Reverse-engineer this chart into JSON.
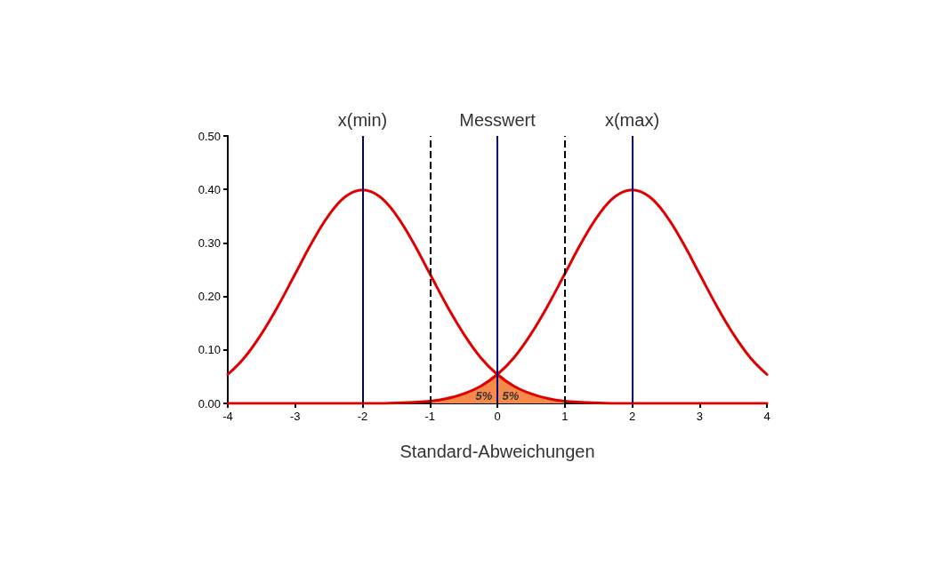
{
  "chart_data": {
    "type": "line",
    "xlabel": "Standard-Abweichungen",
    "x": [
      -4,
      -3.75,
      -3.5,
      -3.25,
      -3,
      -2.75,
      -2.5,
      -2.25,
      -2,
      -1.75,
      -1.5,
      -1.25,
      -1,
      -0.75,
      -0.5,
      -0.25,
      0,
      0.25,
      0.5,
      0.75,
      1,
      1.25,
      1.5,
      1.75,
      2,
      2.25,
      2.5,
      2.75,
      3,
      3.25,
      3.5,
      3.75,
      4
    ],
    "series": [
      {
        "color": "#e00000",
        "values": [
          0.054,
          0.086,
          0.13,
          0.183,
          0.242,
          0.301,
          0.352,
          0.387,
          0.399,
          0.387,
          0.352,
          0.301,
          0.242,
          0.183,
          0.13,
          0.086,
          0.054,
          0.032,
          0.018,
          0.009,
          0.004,
          0.002,
          0.001,
          0,
          0,
          0,
          0,
          0,
          0,
          0,
          0,
          0,
          0
        ]
      },
      {
        "color": "#e00000",
        "values": [
          0,
          0,
          0,
          0,
          0,
          0,
          0,
          0,
          0,
          0,
          0.001,
          0.002,
          0.004,
          0.009,
          0.018,
          0.032,
          0.054,
          0.086,
          0.13,
          0.183,
          0.242,
          0.301,
          0.352,
          0.387,
          0.399,
          0.387,
          0.352,
          0.301,
          0.242,
          0.183,
          0.13,
          0.086,
          0.054
        ]
      },
      {
        "type": "area",
        "color": "#f58a4b",
        "x": [
          -1,
          -0.75,
          -0.5,
          -0.25,
          0,
          0.25,
          0.5,
          0.75,
          1
        ],
        "values": [
          0.004,
          0.009,
          0.018,
          0.032,
          0.054,
          0.032,
          0.018,
          0.009,
          0.004
        ]
      }
    ],
    "xlim": [
      -4,
      4
    ],
    "xticks": [
      -4,
      -3,
      -2,
      -1,
      0,
      1,
      2,
      3,
      4
    ],
    "ylim": [
      0,
      0.5
    ],
    "yticks": [
      {
        "value": 0,
        "label": "0.00"
      },
      {
        "value": 0.1,
        "label": "0.10"
      },
      {
        "value": 0.2,
        "label": "0.20"
      },
      {
        "value": 0.3,
        "label": "0.30"
      },
      {
        "value": 0.4,
        "label": "0.40"
      },
      {
        "value": 0.5,
        "label": "0.50"
      }
    ],
    "ref_lines": [
      {
        "axis": "x",
        "value": -2,
        "label": "x(min)",
        "color": "#000080",
        "line_style": "solid"
      },
      {
        "axis": "x",
        "value": 0,
        "label": "Messwert",
        "color": "#000080",
        "line_style": "solid"
      },
      {
        "axis": "x",
        "value": 2,
        "label": "x(max)",
        "color": "#000080",
        "line_style": "solid"
      },
      {
        "axis": "x",
        "value": -1,
        "color": "#000000",
        "line_style": "dashed"
      },
      {
        "axis": "x",
        "value": 1,
        "color": "#000000",
        "line_style": "dashed"
      }
    ],
    "annotations": [
      "5%",
      "5%"
    ],
    "grid": false,
    "marker": "none",
    "line_style": "solid"
  }
}
